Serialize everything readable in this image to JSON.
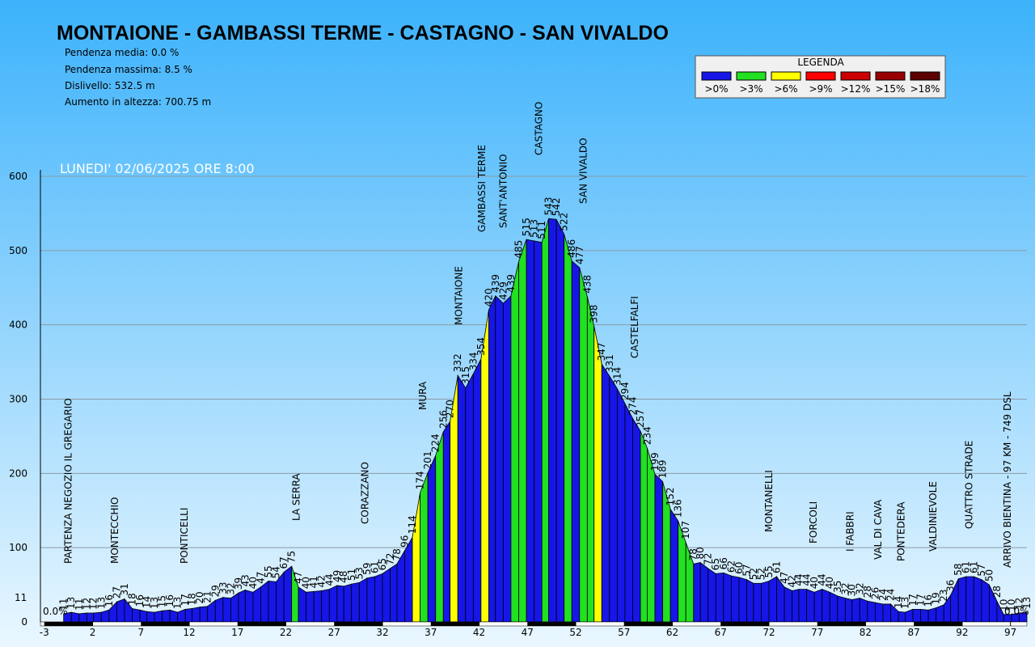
{
  "chart_data": {
    "type": "elevation_profile",
    "title": "MONTAIONE - GAMBASSI TERME -  CASTAGNO - SAN VIVALDO",
    "stats": [
      "Pendenza media: 0.0 %",
      "Pendenza massima: 8.5 %",
      "Dislivello: 532.5 m",
      "Aumento in altezza: 700.75 m"
    ],
    "date": "LUNEDI' 02/06/2025 ORE 8:00",
    "legend_title": "LEGENDA",
    "legend": [
      {
        "label": ">0%",
        "min": 0,
        "color": "#1616e8"
      },
      {
        "label": ">3%",
        "min": 3,
        "color": "#22e022"
      },
      {
        "label": ">6%",
        "min": 6,
        "color": "#ffff00"
      },
      {
        "label": ">9%",
        "min": 9,
        "color": "#ff0000"
      },
      {
        "label": ">12%",
        "min": 12,
        "color": "#cc0000"
      },
      {
        "label": ">15%",
        "min": 15,
        "color": "#990000"
      },
      {
        "label": ">18%",
        "min": 18,
        "color": "#5c0000"
      }
    ],
    "start_slope": "0.0%",
    "end_slope": "0.0%",
    "x": [
      -1.0,
      -0.2,
      0.6,
      1.4,
      2.1,
      2.9,
      3.7,
      4.5,
      5.3,
      6.1,
      6.9,
      7.6,
      8.4,
      9.2,
      10.0,
      10.8,
      11.6,
      12.3,
      13.1,
      13.9,
      14.7,
      15.5,
      16.3,
      17.1,
      17.8,
      18.6,
      19.4,
      20.2,
      21.0,
      21.8,
      22.6,
      23.3,
      24.1,
      24.9,
      25.7,
      26.5,
      27.3,
      28.0,
      28.8,
      29.6,
      30.4,
      31.2,
      32.0,
      32.8,
      33.5,
      34.3,
      35.1,
      35.9,
      36.7,
      37.5,
      38.3,
      39.0,
      39.8,
      40.6,
      41.4,
      42.2,
      43.0,
      43.7,
      44.5,
      45.3,
      46.1,
      46.9,
      47.7,
      48.5,
      49.2,
      50.0,
      50.8,
      51.6,
      52.4,
      53.2,
      53.9,
      54.7,
      55.5,
      56.3,
      57.1,
      57.9,
      58.7,
      59.4,
      60.2,
      61.0,
      61.8,
      62.6,
      63.4,
      64.2,
      64.9,
      65.7,
      66.5,
      67.3,
      68.1,
      68.9,
      69.7,
      70.4,
      71.2,
      72.0,
      72.8,
      73.6,
      74.4,
      75.1,
      75.9,
      76.7,
      77.5,
      78.3,
      79.1,
      79.9,
      80.6,
      81.4,
      82.2,
      83.0,
      83.8,
      84.6,
      85.4,
      86.1,
      86.9,
      87.7,
      88.5,
      89.3,
      90.1,
      90.8,
      91.6,
      92.4,
      93.2,
      94.0,
      94.8,
      95.6,
      96.3,
      97.1,
      97.9,
      98.7
    ],
    "values": [
      11,
      13,
      11,
      12,
      12,
      13,
      16,
      27,
      31,
      18,
      16,
      14,
      13,
      15,
      16,
      13,
      17,
      18,
      20,
      21,
      29,
      33,
      32,
      39,
      43,
      40,
      47,
      55,
      54,
      67,
      75,
      47,
      40,
      41,
      42,
      44,
      49,
      48,
      51,
      53,
      59,
      61,
      65,
      72,
      78,
      96,
      114,
      174,
      201,
      224,
      256,
      270,
      332,
      315,
      334,
      354,
      420,
      439,
      429,
      439,
      485,
      515,
      513,
      511,
      543,
      542,
      522,
      486,
      477,
      438,
      398,
      347,
      331,
      314,
      294,
      274,
      257,
      234,
      199,
      189,
      152,
      136,
      107,
      78,
      80,
      72,
      65,
      66,
      62,
      60,
      57,
      52,
      52,
      55,
      61,
      47,
      42,
      44,
      44,
      40,
      44,
      40,
      35,
      32,
      30,
      32,
      28,
      26,
      24,
      24,
      14,
      13,
      17,
      17,
      16,
      19,
      23,
      36,
      58,
      61,
      61,
      57,
      50,
      28,
      10,
      10,
      12,
      13
    ],
    "places": [
      {
        "name": "PARTENZA NEGOZIO IL GREGARIO",
        "x": -0.5
      },
      {
        "name": "MONTECCHIO",
        "x": 4.3
      },
      {
        "name": "PONTICELLI",
        "x": 11.5
      },
      {
        "name": "LA SERRA",
        "x": 23.1
      },
      {
        "name": "CORAZZANO",
        "x": 30.2
      },
      {
        "name": "MURA",
        "x": 36.2
      },
      {
        "name": "MONTAIONE",
        "x": 39.9
      },
      {
        "name": "GAMBASSI TERME",
        "x": 42.3
      },
      {
        "name": "SANT'ANTONIO",
        "x": 44.5
      },
      {
        "name": "CASTAGNO",
        "x": 48.2
      },
      {
        "name": "SAN VIVALDO",
        "x": 52.8
      },
      {
        "name": "CASTELFALFI",
        "x": 58.1
      },
      {
        "name": "MONTANELLI",
        "x": 72.0
      },
      {
        "name": "FORCOLI",
        "x": 76.6
      },
      {
        "name": "I FABBRI",
        "x": 80.4
      },
      {
        "name": "VAL DI CAVA",
        "x": 83.3
      },
      {
        "name": "PONTEDERA",
        "x": 85.7
      },
      {
        "name": "VALDINIEVOLE",
        "x": 89.0
      },
      {
        "name": "QUATTRO STRADE",
        "x": 92.7
      },
      {
        "name": "ARRIVO BIENTINA - 97 KM - 749 DSL",
        "x": 96.7
      }
    ],
    "xlim": [
      -3.4,
      98.7
    ],
    "xticks": [
      -3,
      2,
      7,
      12,
      17,
      22,
      27,
      32,
      37,
      42,
      47,
      52,
      57,
      62,
      67,
      72,
      77,
      82,
      87,
      92,
      97
    ],
    "ylim": [
      0,
      600
    ],
    "yticks": [
      0,
      100,
      200,
      300,
      400,
      500,
      600
    ],
    "grid": true
  }
}
